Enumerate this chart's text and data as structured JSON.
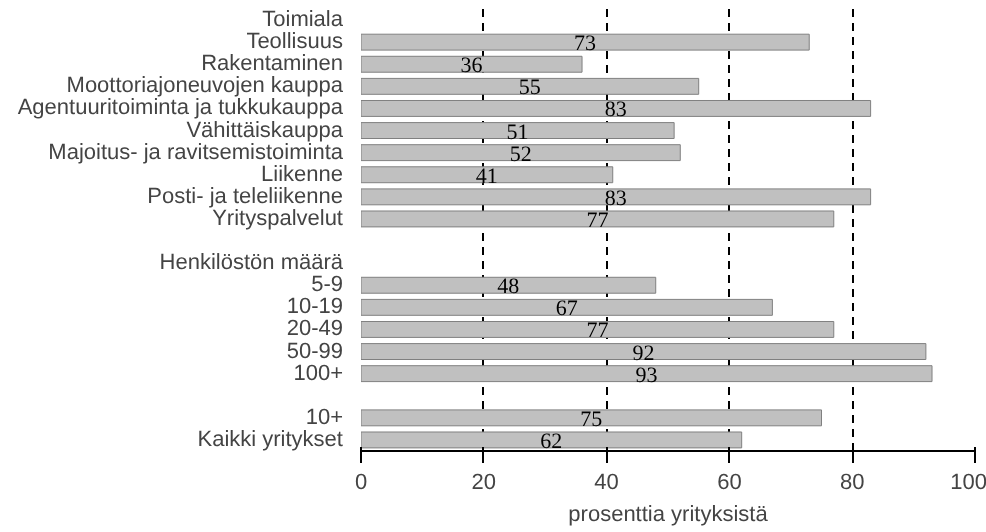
{
  "chart_data": {
    "type": "bar",
    "orientation": "horizontal",
    "xlabel": "prosenttia yrityksistä",
    "categories": [
      "Toimiala",
      "Teollisuus",
      "Rakentaminen",
      "Moottoriajoneuvojen kauppa",
      "Agentuuritoiminta ja tukkukauppa",
      "Vähittäiskauppa",
      "Majoitus- ja ravitsemistoiminta",
      "Liikenne",
      "Posti- ja teleliikenne",
      "Yrityspalvelut",
      null,
      "Henkilöstön määrä",
      "5-9",
      "10-19",
      "20-49",
      "50-99",
      "100+",
      null,
      "10+",
      "Kaikki yritykset"
    ],
    "values": [
      null,
      73,
      36,
      55,
      83,
      51,
      52,
      41,
      83,
      77,
      null,
      null,
      48,
      67,
      77,
      92,
      93,
      null,
      75,
      62
    ],
    "color": "#c0c0c0",
    "data_labels": true,
    "xlim": [
      0,
      100
    ],
    "xticks": [
      0,
      20,
      40,
      60,
      80,
      100
    ],
    "grid": "x"
  }
}
